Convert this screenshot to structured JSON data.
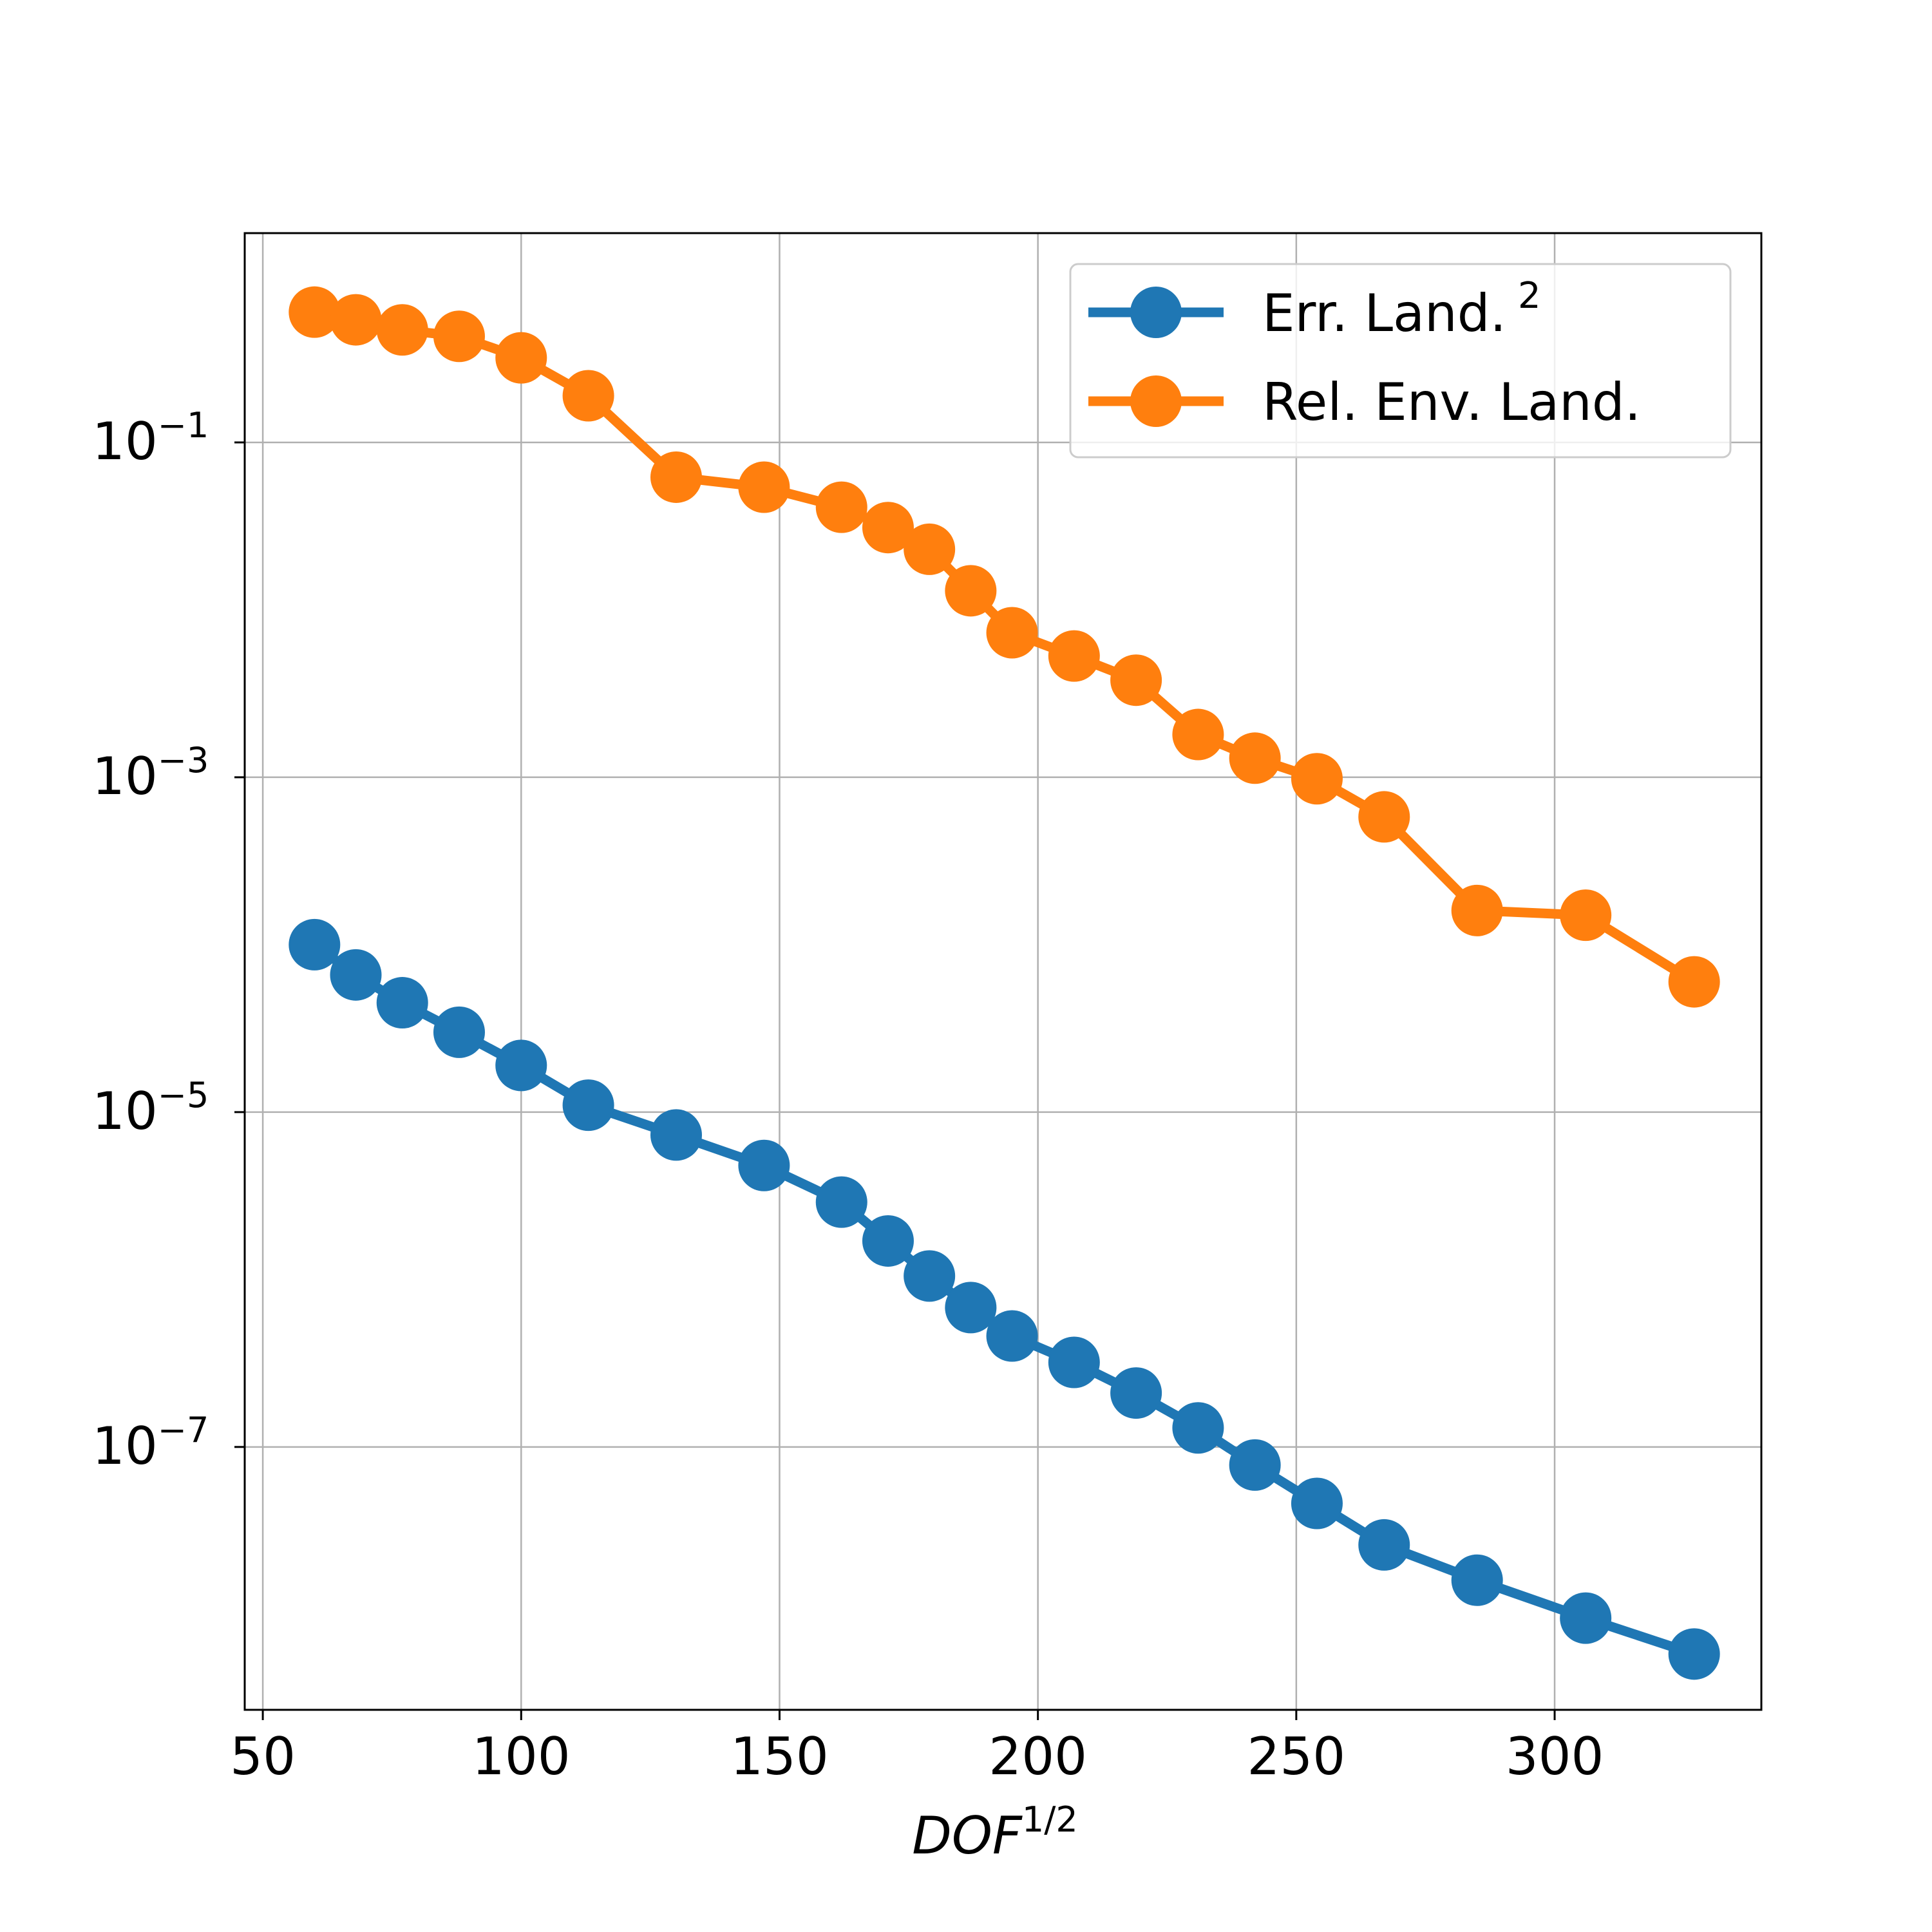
{
  "chart_data": {
    "type": "line",
    "yscale": "log",
    "xlabel": {
      "base": "DOF",
      "sup": "1/2"
    },
    "ylabel": "",
    "title": "",
    "xlim": [
      46.5,
      340
    ],
    "ylim_log10": [
      -8.57,
      0.25
    ],
    "grid": true,
    "legend_position": "top-right",
    "x_ticks": [
      {
        "value": 50,
        "label": "50"
      },
      {
        "value": 100,
        "label": "100"
      },
      {
        "value": 150,
        "label": "150"
      },
      {
        "value": 200,
        "label": "200"
      },
      {
        "value": 250,
        "label": "250"
      },
      {
        "value": 300,
        "label": "300"
      }
    ],
    "y_ticks": [
      {
        "exp": -1,
        "base": "10",
        "sup": "−1"
      },
      {
        "exp": -3,
        "base": "10",
        "sup": "−3"
      },
      {
        "exp": -5,
        "base": "10",
        "sup": "−5"
      },
      {
        "exp": -7,
        "base": "10",
        "sup": "−7"
      }
    ],
    "x": [
      60,
      68,
      77,
      88,
      100,
      113,
      130,
      147,
      162,
      171,
      179,
      187,
      195,
      207,
      219,
      231,
      242,
      254,
      267,
      285,
      306,
      327
    ],
    "series": [
      {
        "name": "Err. Land.",
        "name_sup": "2",
        "color": "#1f77b4",
        "values": [
          0.0001,
          6.6e-05,
          4.5e-05,
          3e-05,
          1.9e-05,
          1.1e-05,
          7.3e-06,
          4.8e-06,
          2.9e-06,
          1.7e-06,
          1.05e-06,
          6.8e-07,
          4.6e-07,
          3.2e-07,
          2.1e-07,
          1.3e-07,
          7.8e-08,
          4.6e-08,
          2.6e-08,
          1.6e-08,
          9.5e-09,
          5.8e-09
        ]
      },
      {
        "name": "Rel. Env. Land.",
        "name_sup": "",
        "color": "#ff7f0e",
        "values": [
          0.6,
          0.54,
          0.47,
          0.43,
          0.32,
          0.19,
          0.062,
          0.054,
          0.041,
          0.031,
          0.023,
          0.013,
          0.0073,
          0.0053,
          0.0038,
          0.0018,
          0.0013,
          0.00098,
          0.00058,
          0.00016,
          0.00015,
          6e-05
        ]
      }
    ]
  }
}
